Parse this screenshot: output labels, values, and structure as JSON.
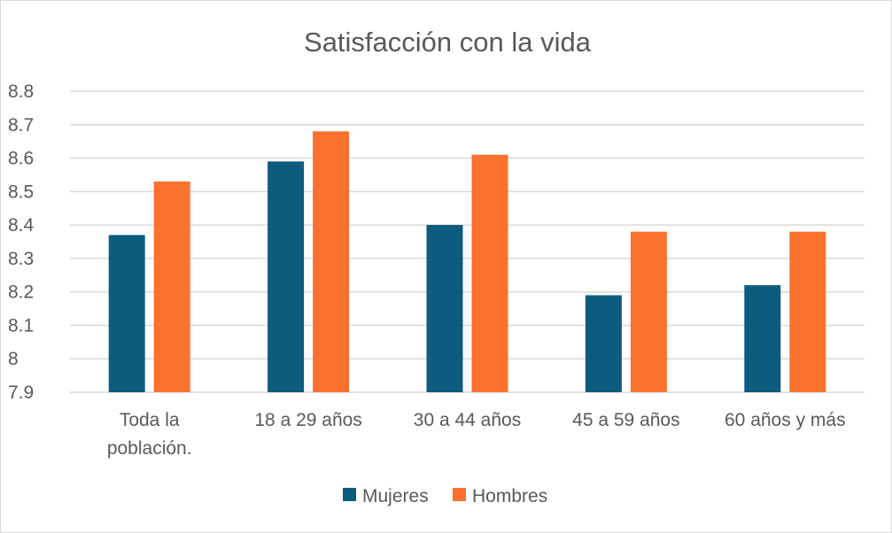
{
  "chart_data": {
    "type": "bar",
    "title": "Satisfacción con la vida",
    "xlabel": "",
    "ylabel": "",
    "ylim": [
      7.9,
      8.8
    ],
    "y_ticks": [
      "8.8",
      "8.7",
      "8.6",
      "8.5",
      "8.4",
      "8.3",
      "8.2",
      "8.1",
      "8",
      "7.9"
    ],
    "y_tick_values": [
      8.8,
      8.7,
      8.6,
      8.5,
      8.4,
      8.3,
      8.2,
      8.1,
      8.0,
      7.9
    ],
    "categories": [
      "Toda la población.",
      "18 a 29 años",
      "30 a 44 años",
      "45 a 59 años",
      "60 años y más"
    ],
    "category_lines": [
      [
        "Toda la",
        "población."
      ],
      [
        "18 a 29 años"
      ],
      [
        "30 a 44 años"
      ],
      [
        "45 a 59 años"
      ],
      [
        "60 años y más"
      ]
    ],
    "series": [
      {
        "name": "Mujeres",
        "color": "#0d5c7e",
        "values": [
          8.37,
          8.59,
          8.4,
          8.19,
          8.22
        ]
      },
      {
        "name": "Hombres",
        "color": "#fa722e",
        "values": [
          8.53,
          8.68,
          8.61,
          8.38,
          8.38
        ]
      }
    ],
    "grid": true,
    "legend": "bottom"
  }
}
